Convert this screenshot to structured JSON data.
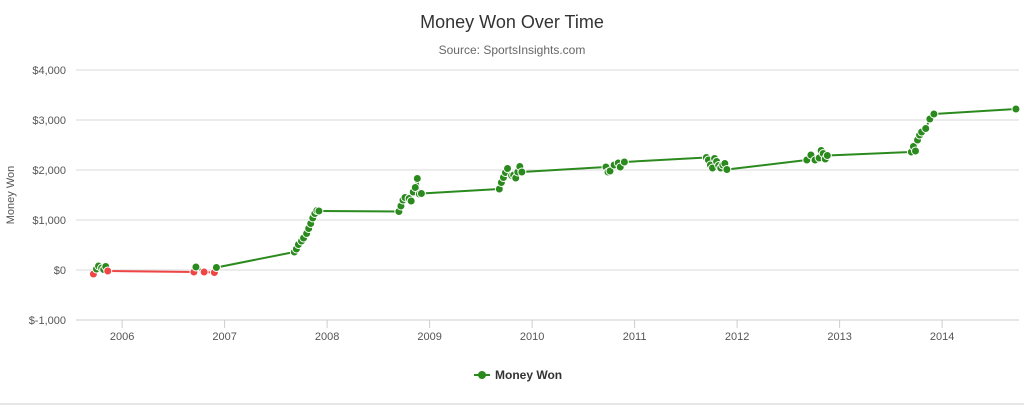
{
  "chart_data": {
    "type": "line",
    "title": "Money Won Over Time",
    "subtitle": "Source: SportsInsights.com",
    "ylabel": "Money Won",
    "xlabel": "",
    "ylim": [
      -1000,
      4000
    ],
    "xlim": [
      2005.55,
      2014.75
    ],
    "y_ticks": [
      -1000,
      0,
      1000,
      2000,
      3000,
      4000
    ],
    "y_tick_labels": [
      "$-1,000",
      "$0",
      "$1,000",
      "$2,000",
      "$3,000",
      "$4,000"
    ],
    "x_ticks": [
      2006,
      2007,
      2008,
      2009,
      2010,
      2011,
      2012,
      2013,
      2014
    ],
    "x_tick_labels": [
      "2006",
      "2007",
      "2008",
      "2009",
      "2010",
      "2011",
      "2012",
      "2013",
      "2014"
    ],
    "grid": "horizontal",
    "legend_position": "bottom",
    "colors": {
      "positive": "#2b8a1e",
      "negative": "#f04545",
      "grid": "#d8d8d8",
      "axis": "#cccccc"
    },
    "series": [
      {
        "name": "Money Won",
        "x": [
          2005.72,
          2005.75,
          2005.77,
          2005.8,
          2005.82,
          2005.84,
          2005.86,
          2006.7,
          2006.72,
          2006.8,
          2006.9,
          2006.92,
          2007.68,
          2007.7,
          2007.72,
          2007.75,
          2007.77,
          2007.8,
          2007.82,
          2007.84,
          2007.86,
          2007.88,
          2007.9,
          2007.92,
          2008.7,
          2008.72,
          2008.74,
          2008.76,
          2008.8,
          2008.82,
          2008.84,
          2008.86,
          2008.88,
          2008.9,
          2008.92,
          2009.68,
          2009.7,
          2009.72,
          2009.74,
          2009.76,
          2009.8,
          2009.82,
          2009.84,
          2009.86,
          2009.88,
          2009.9,
          2010.72,
          2010.74,
          2010.76,
          2010.8,
          2010.84,
          2010.86,
          2010.9,
          2011.7,
          2011.72,
          2011.74,
          2011.76,
          2011.78,
          2011.8,
          2011.82,
          2011.84,
          2011.86,
          2011.88,
          2011.9,
          2012.68,
          2012.72,
          2012.76,
          2012.8,
          2012.82,
          2012.84,
          2012.86,
          2012.88,
          2013.7,
          2013.72,
          2013.74,
          2013.76,
          2013.78,
          2013.8,
          2013.84,
          2013.88,
          2013.92,
          2014.72
        ],
        "y": [
          -80,
          20,
          80,
          40,
          10,
          70,
          -20,
          -40,
          60,
          -40,
          -50,
          50,
          360,
          420,
          510,
          580,
          640,
          730,
          830,
          930,
          1040,
          1130,
          1190,
          1180,
          1170,
          1280,
          1400,
          1450,
          1430,
          1380,
          1560,
          1650,
          1830,
          1520,
          1530,
          1620,
          1750,
          1850,
          1950,
          2030,
          1890,
          1900,
          1840,
          1960,
          2070,
          1960,
          2060,
          1960,
          1980,
          2100,
          2140,
          2060,
          2160,
          2250,
          2200,
          2100,
          2040,
          2230,
          2170,
          2090,
          2040,
          2100,
          2130,
          2010,
          2200,
          2300,
          2200,
          2240,
          2390,
          2330,
          2220,
          2290,
          2360,
          2470,
          2380,
          2600,
          2700,
          2760,
          2830,
          3020,
          3120,
          3220
        ]
      }
    ]
  }
}
